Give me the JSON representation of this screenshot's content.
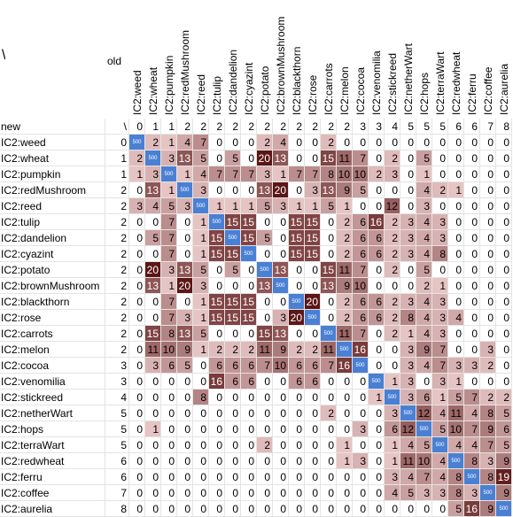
{
  "corner": "\\",
  "old_label": "old",
  "new_label": "new",
  "new_corner": "\\",
  "columns": [
    "IC2:weed",
    "IC2:wheat",
    "IC2:pumpkin",
    "IC2:redMushroom",
    "IC2:reed",
    "IC2:tulip",
    "IC2:dandelion",
    "IC2:cyazint",
    "IC2:potato",
    "IC2:brownMushroom",
    "IC2:blackthorn",
    "IC2:rose",
    "IC2:carrots",
    "IC2:melon",
    "IC2:cocoa",
    "IC2:venomilia",
    "IC2:stickreed",
    "IC2:netherWart",
    "IC2:hops",
    "IC2:terraWart",
    "IC2:redwheat",
    "IC2:ferru",
    "IC2:coffee",
    "IC2:aurelia"
  ],
  "new_values": [
    0,
    1,
    1,
    2,
    2,
    2,
    2,
    2,
    2,
    2,
    2,
    2,
    2,
    2,
    3,
    3,
    4,
    5,
    5,
    5,
    6,
    6,
    7,
    8
  ],
  "rows": [
    {
      "name": "IC2:weed",
      "old": 0,
      "cells": [
        500,
        2,
        1,
        4,
        7,
        0,
        0,
        0,
        2,
        4,
        0,
        0,
        2,
        0,
        0,
        0,
        0,
        0,
        0,
        0,
        0,
        0,
        0,
        0
      ]
    },
    {
      "name": "IC2:wheat",
      "old": 1,
      "cells": [
        2,
        500,
        3,
        13,
        5,
        0,
        5,
        0,
        20,
        13,
        0,
        0,
        15,
        11,
        7,
        0,
        2,
        0,
        5,
        0,
        0,
        0,
        0,
        0
      ]
    },
    {
      "name": "IC2:pumpkin",
      "old": 1,
      "cells": [
        1,
        3,
        500,
        1,
        4,
        7,
        7,
        7,
        3,
        1,
        7,
        7,
        8,
        10,
        10,
        2,
        3,
        0,
        1,
        0,
        0,
        0,
        0,
        0
      ]
    },
    {
      "name": "IC2:redMushroom",
      "old": 2,
      "cells": [
        0,
        13,
        1,
        500,
        3,
        0,
        0,
        0,
        13,
        20,
        0,
        3,
        13,
        9,
        5,
        0,
        0,
        0,
        4,
        2,
        1,
        0,
        0,
        0
      ]
    },
    {
      "name": "IC2:reed",
      "old": 2,
      "cells": [
        3,
        4,
        5,
        3,
        500,
        1,
        1,
        1,
        5,
        3,
        1,
        1,
        5,
        1,
        0,
        0,
        12,
        0,
        3,
        0,
        0,
        0,
        0,
        0
      ]
    },
    {
      "name": "IC2:tulip",
      "old": 2,
      "cells": [
        0,
        0,
        7,
        0,
        1,
        500,
        15,
        15,
        0,
        0,
        15,
        15,
        0,
        2,
        6,
        16,
        2,
        3,
        4,
        3,
        0,
        0,
        0,
        0
      ]
    },
    {
      "name": "IC2:dandelion",
      "old": 2,
      "cells": [
        0,
        5,
        7,
        0,
        1,
        15,
        500,
        15,
        5,
        0,
        15,
        15,
        0,
        2,
        6,
        6,
        2,
        3,
        4,
        3,
        0,
        0,
        0,
        0
      ]
    },
    {
      "name": "IC2:cyazint",
      "old": 2,
      "cells": [
        0,
        0,
        7,
        0,
        1,
        15,
        15,
        500,
        0,
        0,
        15,
        15,
        0,
        2,
        6,
        6,
        2,
        3,
        4,
        8,
        0,
        0,
        0,
        0
      ]
    },
    {
      "name": "IC2:potato",
      "old": 2,
      "cells": [
        0,
        20,
        3,
        13,
        5,
        0,
        5,
        0,
        500,
        13,
        0,
        0,
        15,
        11,
        7,
        0,
        2,
        0,
        5,
        0,
        0,
        0,
        0,
        0
      ]
    },
    {
      "name": "IC2:brownMushroom",
      "old": 2,
      "cells": [
        0,
        13,
        1,
        20,
        3,
        0,
        0,
        0,
        13,
        500,
        0,
        0,
        13,
        9,
        10,
        0,
        0,
        0,
        2,
        1,
        0,
        0,
        0,
        0
      ]
    },
    {
      "name": "IC2:blackthorn",
      "old": 2,
      "cells": [
        0,
        0,
        7,
        0,
        1,
        15,
        15,
        15,
        0,
        0,
        500,
        20,
        0,
        2,
        6,
        6,
        2,
        3,
        4,
        3,
        0,
        0,
        0,
        0
      ]
    },
    {
      "name": "IC2:rose",
      "old": 2,
      "cells": [
        0,
        0,
        7,
        3,
        1,
        15,
        15,
        15,
        0,
        3,
        20,
        500,
        0,
        2,
        6,
        6,
        2,
        8,
        4,
        3,
        4,
        0,
        0,
        0
      ]
    },
    {
      "name": "IC2:carrots",
      "old": 2,
      "cells": [
        0,
        15,
        8,
        13,
        5,
        0,
        0,
        0,
        15,
        13,
        0,
        0,
        500,
        11,
        7,
        0,
        2,
        1,
        4,
        3,
        0,
        0,
        0,
        0
      ]
    },
    {
      "name": "IC2:melon",
      "old": 2,
      "cells": [
        0,
        11,
        10,
        9,
        1,
        2,
        2,
        2,
        11,
        9,
        2,
        2,
        11,
        500,
        16,
        0,
        0,
        3,
        9,
        7,
        0,
        0,
        3,
        0
      ]
    },
    {
      "name": "IC2:cocoa",
      "old": 3,
      "cells": [
        0,
        3,
        6,
        5,
        0,
        6,
        6,
        6,
        7,
        10,
        6,
        6,
        7,
        16,
        500,
        0,
        0,
        3,
        4,
        7,
        3,
        3,
        2,
        0
      ]
    },
    {
      "name": "IC2:venomilia",
      "old": 3,
      "cells": [
        0,
        0,
        0,
        0,
        0,
        16,
        6,
        6,
        0,
        0,
        6,
        6,
        0,
        0,
        0,
        500,
        1,
        3,
        0,
        3,
        1,
        0,
        0,
        0
      ]
    },
    {
      "name": "IC2:stickreed",
      "old": 4,
      "cells": [
        0,
        0,
        0,
        0,
        8,
        0,
        0,
        0,
        0,
        0,
        0,
        0,
        0,
        0,
        0,
        1,
        500,
        3,
        6,
        1,
        5,
        7,
        2,
        2
      ]
    },
    {
      "name": "IC2:netherWart",
      "old": 5,
      "cells": [
        0,
        0,
        0,
        0,
        0,
        0,
        0,
        0,
        0,
        0,
        0,
        0,
        2,
        0,
        0,
        0,
        3,
        500,
        12,
        4,
        11,
        4,
        8,
        5
      ]
    },
    {
      "name": "IC2:hops",
      "old": 5,
      "cells": [
        0,
        1,
        0,
        0,
        0,
        0,
        0,
        0,
        0,
        0,
        0,
        0,
        0,
        0,
        3,
        0,
        6,
        12,
        500,
        5,
        10,
        7,
        9,
        6
      ]
    },
    {
      "name": "IC2:terraWart",
      "old": 5,
      "cells": [
        0,
        0,
        0,
        0,
        0,
        0,
        0,
        0,
        2,
        0,
        0,
        0,
        0,
        1,
        0,
        0,
        1,
        4,
        5,
        500,
        4,
        4,
        7,
        5
      ]
    },
    {
      "name": "IC2:redwheat",
      "old": 6,
      "cells": [
        0,
        0,
        0,
        0,
        0,
        0,
        0,
        0,
        0,
        0,
        0,
        0,
        0,
        1,
        3,
        0,
        1,
        11,
        10,
        4,
        500,
        8,
        3,
        9
      ]
    },
    {
      "name": "IC2:ferru",
      "old": 6,
      "cells": [
        0,
        0,
        0,
        0,
        0,
        0,
        0,
        0,
        0,
        0,
        0,
        0,
        0,
        0,
        0,
        0,
        3,
        4,
        7,
        4,
        8,
        500,
        8,
        19
      ]
    },
    {
      "name": "IC2:coffee",
      "old": 7,
      "cells": [
        0,
        0,
        0,
        0,
        0,
        0,
        0,
        0,
        0,
        0,
        0,
        0,
        0,
        0,
        0,
        0,
        4,
        5,
        3,
        3,
        8,
        3,
        500,
        9
      ]
    },
    {
      "name": "IC2:aurelia",
      "old": 8,
      "cells": [
        0,
        0,
        0,
        0,
        0,
        0,
        0,
        0,
        0,
        0,
        0,
        0,
        0,
        0,
        0,
        0,
        0,
        0,
        0,
        0,
        5,
        16,
        9,
        500
      ]
    }
  ]
}
